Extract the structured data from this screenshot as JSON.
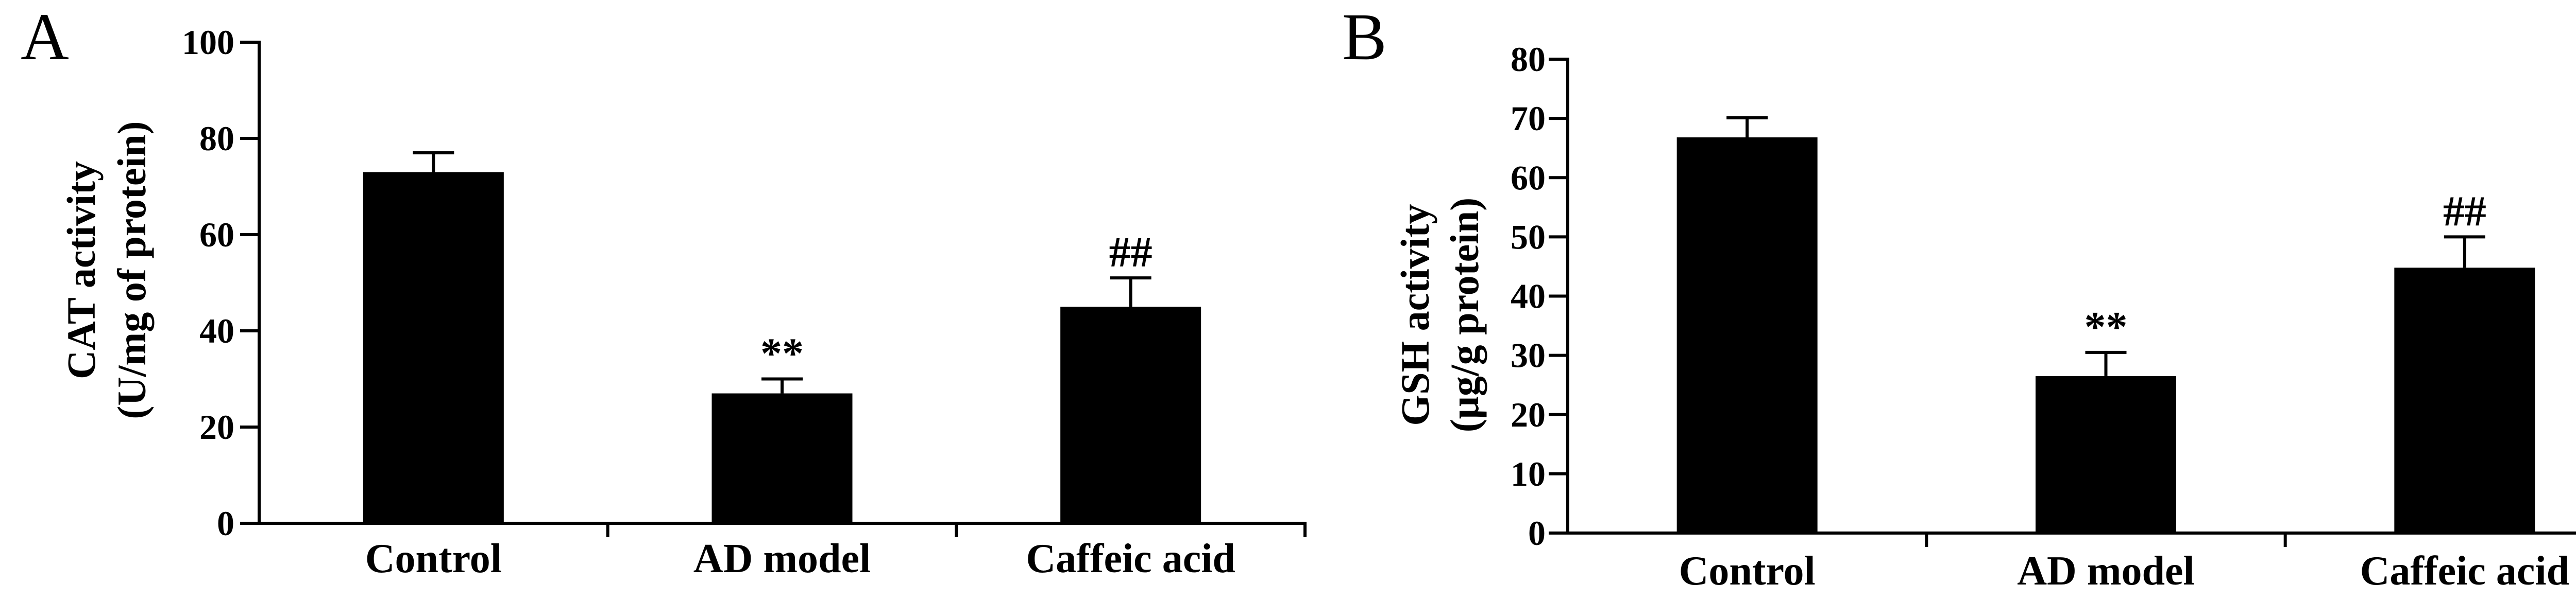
{
  "chart_data": [
    {
      "type": "bar",
      "panel_label": "A",
      "categories": [
        "Control",
        "AD model",
        "Caffeic acid"
      ],
      "values": [
        73,
        27,
        45
      ],
      "error": [
        4,
        3,
        6
      ],
      "annotations": [
        null,
        "**",
        "##"
      ],
      "ylabel": [
        "CAT activity",
        "(U/mg of protein)"
      ],
      "xlabel": "",
      "ylim": [
        0,
        100
      ],
      "yticks": [
        0,
        20,
        40,
        60,
        80,
        100
      ],
      "grid": false,
      "bar_color": "#000000"
    },
    {
      "type": "bar",
      "panel_label": "B",
      "categories": [
        "Control",
        "AD model",
        "Caffeic acid"
      ],
      "values": [
        66.8,
        26.5,
        44.8
      ],
      "error": [
        3.3,
        4.0,
        5.2
      ],
      "annotations": [
        null,
        "**",
        "##"
      ],
      "ylabel": [
        "GSH activity",
        "(μg/g protein)"
      ],
      "xlabel": "",
      "ylim": [
        0,
        80
      ],
      "yticks": [
        0,
        10,
        20,
        30,
        40,
        50,
        60,
        70,
        80
      ],
      "grid": false,
      "bar_color": "#000000"
    }
  ]
}
